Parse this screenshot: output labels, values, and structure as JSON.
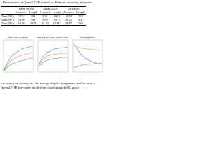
{
  "table": {
    "caption": "l: Performance of Qwen2.5-7B trained on different reasoning instructio",
    "groups": [
      "MATH-OAI",
      "AIME 2024",
      "MINERV"
    ],
    "subheader": [
      "Accuracy",
      "Length",
      "Accuracy",
      "Length",
      "Accuracy",
      "Length"
    ],
    "rows": [
      [
        "Data (5K)",
        "74.72",
        "486",
        "5.31",
        "1081",
        "19.54",
        "721"
      ],
      [
        "Data (5K)",
        "74.80",
        "436",
        "5.80",
        "1917",
        "31.25",
        "1012"
      ],
      [
        "Data (5K)",
        "82.89",
        "9078",
        "13.33",
        "18542",
        "34.87",
        "7563"
      ]
    ]
  },
  "figure": {
    "panels": [
      {
        "title": "Train Set Accuracy"
      },
      {
        "title": "Test Set Accuracy (MATH-OAI)"
      },
      {
        "title": "Thinking Ratio"
      }
    ],
    "caption": [
      "e accuracy on training set, the average length of responses, and the ratio o",
      "Qwen2.5-7B fine-tuned on different data during the RL proce"
    ]
  }
}
